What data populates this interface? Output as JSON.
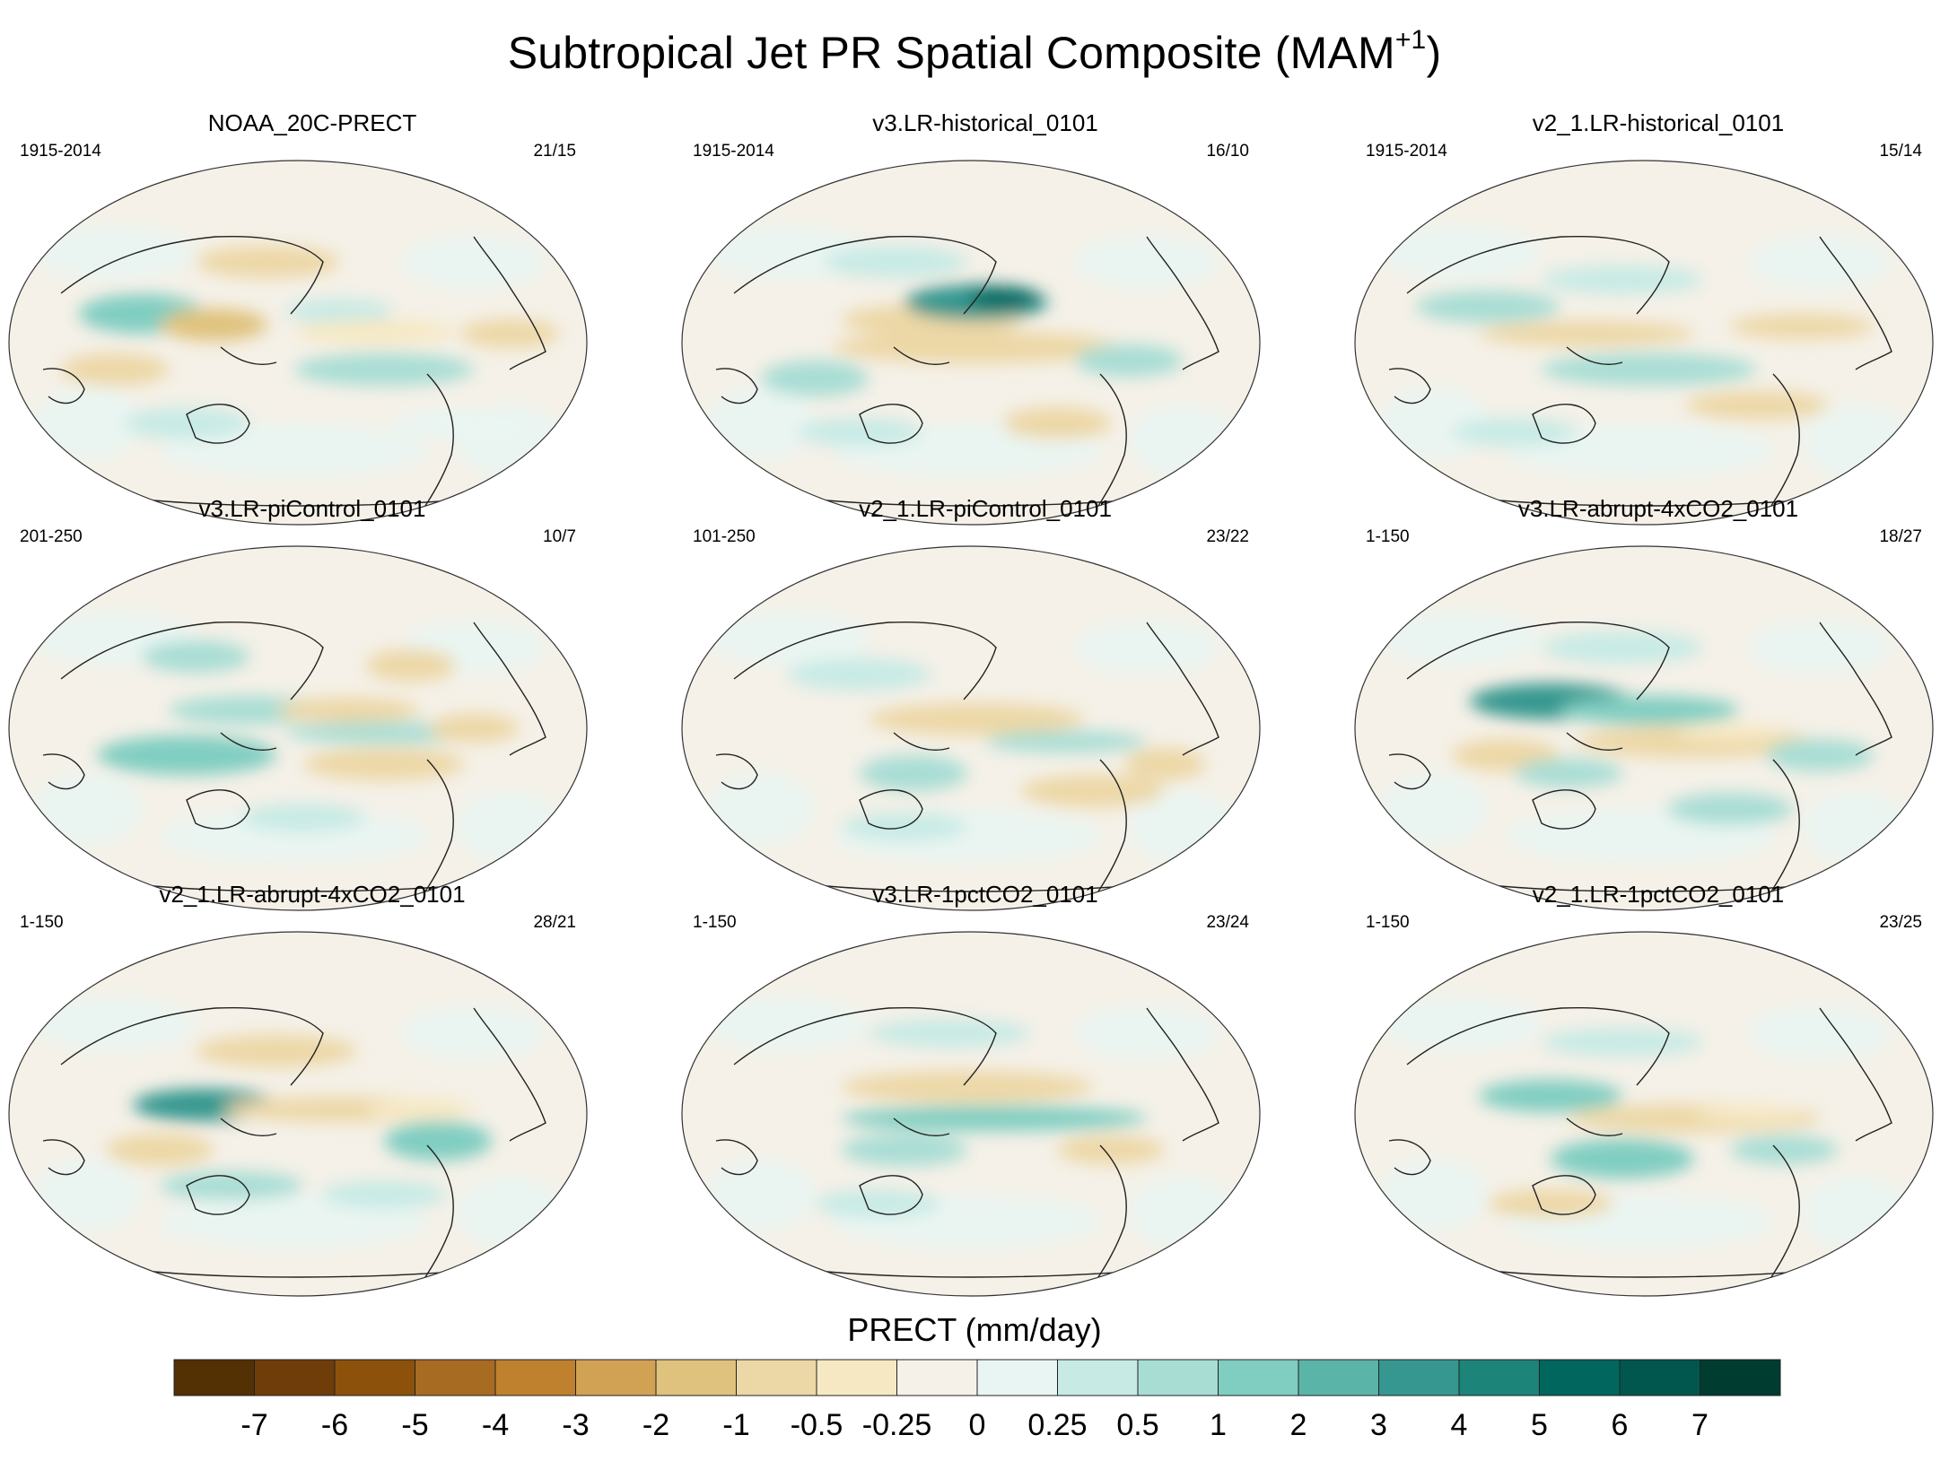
{
  "chart_data": {
    "type": "heatmap",
    "title_main": "Subtropical Jet PR Spatial Composite (MAM",
    "title_sup": "+1",
    "title_end": ")",
    "colorbar": {
      "label": "PRECT (mm/day)",
      "tick_labels": [
        "-7",
        "-6",
        "-5",
        "-4",
        "-3",
        "-2",
        "-1",
        "-0.5",
        "-0.25",
        "0",
        "0.25",
        "0.5",
        "1",
        "2",
        "3",
        "4",
        "5",
        "6",
        "7"
      ],
      "colors": [
        "#543005",
        "#6f3d0a",
        "#8c510a",
        "#a86b22",
        "#bf812d",
        "#d1a254",
        "#dfc27d",
        "#ecd7a6",
        "#f6e8c3",
        "#f5f1e8",
        "#e9f5f2",
        "#c7eae5",
        "#a8ddd4",
        "#80cdc1",
        "#5ab4a8",
        "#35978f",
        "#1c8479",
        "#01665e",
        "#01574d",
        "#003c30"
      ]
    },
    "panels": [
      {
        "title": "NOAA_20C-PRECT",
        "period": "1915-2014",
        "count": "21/15"
      },
      {
        "title": "v3.LR-historical_0101",
        "period": "1915-2014",
        "count": "16/10"
      },
      {
        "title": "v2_1.LR-historical_0101",
        "period": "1915-2014",
        "count": "15/14"
      },
      {
        "title": "v3.LR-piControl_0101",
        "period": "201-250",
        "count": "10/7"
      },
      {
        "title": "v2_1.LR-piControl_0101",
        "period": "101-250",
        "count": "23/22"
      },
      {
        "title": "v3.LR-abrupt-4xCO2_0101",
        "period": "1-150",
        "count": "18/27"
      },
      {
        "title": "v2_1.LR-abrupt-4xCO2_0101",
        "period": "1-150",
        "count": "28/21"
      },
      {
        "title": "v3.LR-1pctCO2_0101",
        "period": "1-150",
        "count": "23/24"
      },
      {
        "title": "v2_1.LR-1pctCO2_0101",
        "period": "1-150",
        "count": "23/25"
      }
    ]
  }
}
